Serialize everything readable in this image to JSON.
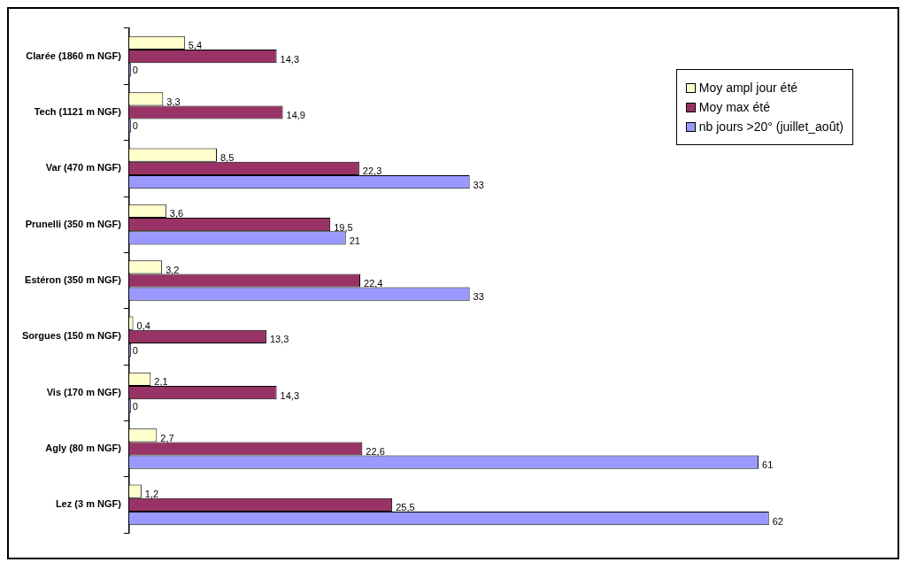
{
  "chart_data": {
    "type": "bar",
    "orientation": "horizontal",
    "legend": "top right",
    "categories": [
      "Clarée (1860 m NGF)",
      "Tech (1121 m NGF)",
      "Var (470 m NGF)",
      "Prunelli (350 m NGF)",
      "Estéron (350 m NGF)",
      "Sorgues (150 m NGF)",
      "Vis (170 m NGF)",
      "Agly (80 m NGF)",
      "Lez (3 m NGF)"
    ],
    "xlim": [
      0,
      70
    ],
    "tick_labels": "y",
    "grid": false,
    "series": [
      {
        "name": "Moy ampl jour été",
        "color": "#ffffcc",
        "values": [
          5.4,
          3.3,
          8.5,
          3.6,
          3.2,
          0.4,
          2.1,
          2.7,
          1.2
        ],
        "value_labels": [
          "5,4",
          "3,3",
          "8,5",
          "3,6",
          "3,2",
          "0,4",
          "2,1",
          "2,7",
          "1,2"
        ]
      },
      {
        "name": "Moy max été",
        "color": "#993366",
        "values": [
          14.3,
          14.9,
          22.3,
          19.5,
          22.4,
          13.3,
          14.3,
          22.6,
          25.5
        ],
        "value_labels": [
          "14,3",
          "14,9",
          "22,3",
          "19,5",
          "22,4",
          "13,3",
          "14,3",
          "22,6",
          "25,5"
        ]
      },
      {
        "name": "nb jours >20° (juillet_août)",
        "color": "#9999ff",
        "values": [
          0,
          0,
          33,
          21,
          33,
          0,
          0,
          61,
          62
        ],
        "value_labels": [
          "0",
          "0",
          "33",
          "21",
          "33",
          "0",
          "0",
          "61",
          "62"
        ]
      }
    ]
  }
}
